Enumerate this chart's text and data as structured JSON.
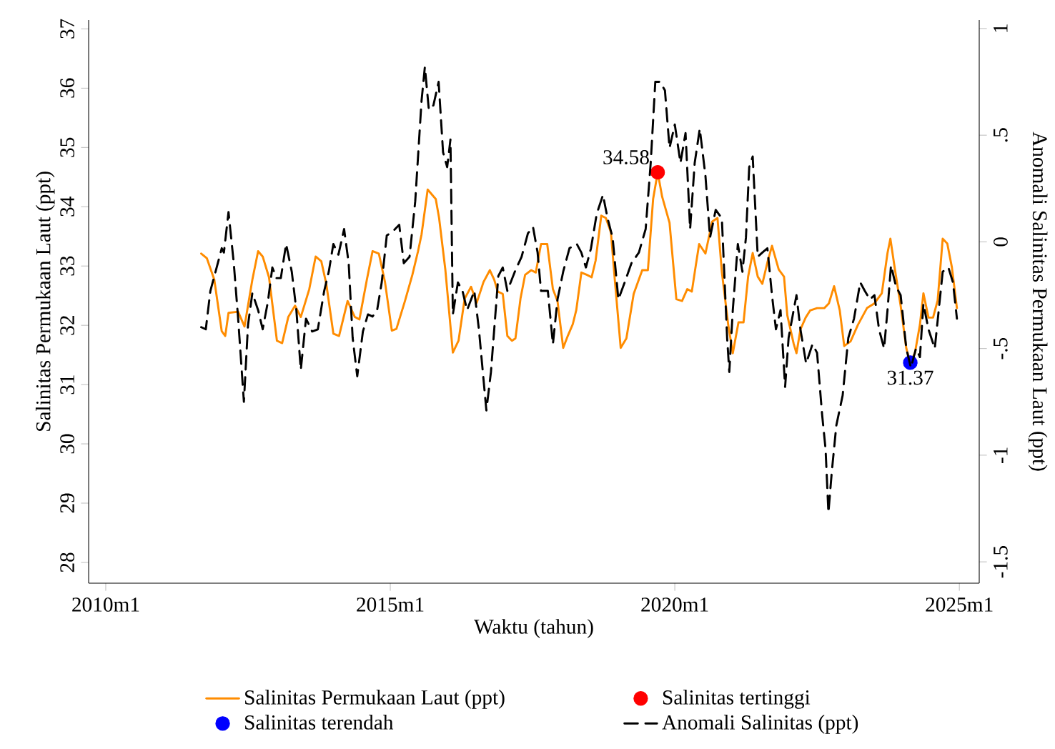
{
  "chart_data": {
    "type": "line",
    "xlabel": "Waktu (tahun)",
    "ylabel": "Salinitas Permukaan Laut (ppt)",
    "y2label": "Anomali Salinitas Permukaan Laut (ppt)",
    "xlim": [
      "2009-09-13",
      "2025-05-07"
    ],
    "ylim": [
      27.65,
      37.15
    ],
    "y2lim": [
      -1.6,
      1.04
    ],
    "xticks": [
      {
        "value": "2010-01",
        "label": "2010m1"
      },
      {
        "value": "2015-01",
        "label": "2015m1"
      },
      {
        "value": "2020-01",
        "label": "2020m1"
      },
      {
        "value": "2025-01",
        "label": "2025m1"
      }
    ],
    "yticks": [
      28,
      29,
      30,
      31,
      32,
      33,
      34,
      35,
      36,
      37
    ],
    "y2ticks": [
      -1.5,
      -1,
      {
        "value": -0.5,
        "label": "-.5"
      },
      0,
      {
        "value": 0.5,
        "label": ".5"
      },
      1
    ],
    "legend": "bottom",
    "series": [
      {
        "name": "Salinitas Permukaan Laut (ppt)",
        "color": "#ff8c00",
        "line_style": "solid",
        "x": [
          "2011-09-05",
          "2011-10-11",
          "2011-11-28",
          "2012-01-15",
          "2012-02-07",
          "2012-02-28",
          "2012-04-29",
          "2012-06-09",
          "2012-07-29",
          "2012-09-05",
          "2012-10-04",
          "2012-11-14",
          "2013-01-04",
          "2013-02-07",
          "2013-03-16",
          "2013-04-29",
          "2013-06-05",
          "2013-07-29",
          "2013-09-09",
          "2013-10-15",
          "2013-11-17",
          "2014-01-01",
          "2014-02-07",
          "2014-04-01",
          "2014-05-17",
          "2014-06-16",
          "2014-08-03",
          "2014-09-09",
          "2014-10-19",
          "2014-11-28",
          "2015-01-11",
          "2015-02-10",
          "2015-04-04",
          "2015-05-21",
          "2015-06-27",
          "2015-07-19",
          "2015-08-28",
          "2015-10-19",
          "2015-11-10",
          "2015-12-20",
          "2016-02-07",
          "2016-03-13",
          "2016-04-22",
          "2016-06-02",
          "2016-07-08",
          "2016-08-21",
          "2016-10-01",
          "2016-10-29",
          "2016-11-21",
          "2016-12-23",
          "2017-01-22",
          "2017-02-21",
          "2017-03-13",
          "2017-04-15",
          "2017-05-14",
          "2017-06-23",
          "2017-07-22",
          "2017-08-25",
          "2017-10-04",
          "2017-11-10",
          "2017-12-09",
          "2018-01-15",
          "2018-02-14",
          "2018-03-16",
          "2018-04-08",
          "2018-05-10",
          "2018-06-16",
          "2018-07-15",
          "2018-08-10",
          "2018-09-16",
          "2018-10-15",
          "2018-11-17",
          "2018-12-09",
          "2019-01-19",
          "2019-02-25",
          "2019-04-11",
          "2019-06-05",
          "2019-07-11",
          "2019-08-14",
          "2019-09-13",
          "2019-10-11",
          "2019-11-28",
          "2020-01-11",
          "2020-02-17",
          "2020-03-20",
          "2020-04-19",
          "2020-05-14",
          "2020-06-05",
          "2020-07-15",
          "2020-08-28",
          "2020-10-01",
          "2020-10-29",
          "2020-12-09",
          "2021-01-08",
          "2021-02-14",
          "2021-03-16",
          "2021-04-15",
          "2021-05-14",
          "2021-06-16",
          "2021-07-15",
          "2021-08-17",
          "2021-09-16",
          "2021-10-29",
          "2021-12-02",
          "2021-12-23",
          "2022-02-03",
          "2022-02-21",
          "2022-03-16",
          "2022-04-19",
          "2022-05-17",
          "2022-07-01",
          "2022-08-17",
          "2022-09-16",
          "2022-10-19",
          "2022-11-25",
          "2022-12-23",
          "2023-02-03",
          "2023-03-20",
          "2023-05-17",
          "2023-07-04",
          "2023-08-21",
          "2023-09-27",
          "2023-10-15",
          "2023-11-14",
          "2023-12-20",
          "2024-01-26",
          "2024-02-21",
          "2024-03-20",
          "2024-04-22",
          "2024-05-14",
          "2024-06-16",
          "2024-07-15",
          "2024-08-14",
          "2024-09-16",
          "2024-10-15",
          "2024-11-14",
          "2024-12-16"
        ],
        "values": [
          33.21,
          33.13,
          32.77,
          31.9,
          31.82,
          32.21,
          32.23,
          31.98,
          32.77,
          33.25,
          33.16,
          32.81,
          31.74,
          31.7,
          32.14,
          32.33,
          32.14,
          32.61,
          33.16,
          33.08,
          32.69,
          31.86,
          31.82,
          32.41,
          32.14,
          32.1,
          32.77,
          33.25,
          33.21,
          32.73,
          31.91,
          31.94,
          32.41,
          32.85,
          33.25,
          33.53,
          34.29,
          34.13,
          33.81,
          32.93,
          31.54,
          31.74,
          32.45,
          32.65,
          32.38,
          32.73,
          32.93,
          32.77,
          32.57,
          32.53,
          31.82,
          31.74,
          31.78,
          32.45,
          32.85,
          32.93,
          32.89,
          33.37,
          33.37,
          32.61,
          32.41,
          31.62,
          31.82,
          32.02,
          32.26,
          32.89,
          32.85,
          32.81,
          33.09,
          33.85,
          33.81,
          33.57,
          32.85,
          31.62,
          31.78,
          32.53,
          32.93,
          32.93,
          34.13,
          34.58,
          34.17,
          33.73,
          32.44,
          32.41,
          32.61,
          32.57,
          33.01,
          33.37,
          33.21,
          33.75,
          33.81,
          32.9,
          32.01,
          31.53,
          32.05,
          32.05,
          32.82,
          33.22,
          32.82,
          32.7,
          33.06,
          33.34,
          32.94,
          32.82,
          32.17,
          31.69,
          31.53,
          31.93,
          32.13,
          32.25,
          32.29,
          32.29,
          32.37,
          32.66,
          32.25,
          31.65,
          31.73,
          32.01,
          32.29,
          32.37,
          32.54,
          33.22,
          33.46,
          32.94,
          32.33,
          31.61,
          31.37,
          31.53,
          32.01,
          32.54,
          32.13,
          32.13,
          32.42,
          33.46,
          33.38,
          32.98,
          32.29
        ]
      },
      {
        "name": "Salinitas tertinggi",
        "type": "scatter",
        "color": "#ff0000",
        "x": [
          "2019-09-13"
        ],
        "values": [
          34.58
        ],
        "value_labels": [
          "34.58"
        ]
      },
      {
        "name": "Salinitas terendah",
        "type": "scatter",
        "color": "#0000ff",
        "x": [
          "2024-02-21"
        ],
        "values": [
          31.37
        ],
        "value_labels": [
          "31.37"
        ]
      },
      {
        "name": "Anomali Salinitas (ppt)",
        "axis": "y2",
        "color": "#000000",
        "line_style": "dashed",
        "x": [
          "2011-09-05",
          "2011-10-04",
          "2011-11-03",
          "2011-12-13",
          "2012-01-15",
          "2012-01-29",
          "2012-02-28",
          "2012-04-01",
          "2012-04-29",
          "2012-06-05",
          "2012-07-01",
          "2012-07-29",
          "2012-09-05",
          "2012-10-04",
          "2012-11-07",
          "2012-12-05",
          "2013-01-01",
          "2013-01-29",
          "2013-03-02",
          "2013-04-08",
          "2013-05-07",
          "2013-06-05",
          "2013-07-08",
          "2013-08-17",
          "2013-09-23",
          "2013-11-03",
          "2013-12-02",
          "2014-01-01",
          "2014-02-03",
          "2014-03-09",
          "2014-04-08",
          "2014-05-03",
          "2014-06-02",
          "2014-07-08",
          "2014-08-10",
          "2014-09-09",
          "2014-10-08",
          "2014-11-07",
          "2014-12-09",
          "2015-01-19",
          "2015-02-28",
          "2015-03-27",
          "2015-05-03",
          "2015-06-09",
          "2015-07-19",
          "2015-08-10",
          "2015-09-05",
          "2015-10-04",
          "2015-11-07",
          "2015-12-05",
          "2016-01-01",
          "2016-01-22",
          "2016-02-07",
          "2016-03-09",
          "2016-04-08",
          "2016-05-07",
          "2016-06-23",
          "2016-07-22",
          "2016-09-09",
          "2016-10-08",
          "2016-11-25",
          "2016-12-23",
          "2017-01-22",
          "2017-03-09",
          "2017-04-22",
          "2017-06-02",
          "2017-07-04",
          "2017-08-03",
          "2017-08-25",
          "2017-10-08",
          "2017-11-10",
          "2017-12-09",
          "2018-01-15",
          "2018-02-25",
          "2018-04-11",
          "2018-05-10",
          "2018-06-09",
          "2018-07-11",
          "2018-08-17",
          "2018-09-27",
          "2018-10-26",
          "2018-11-28",
          "2019-01-04",
          "2019-02-14",
          "2019-03-27",
          "2019-05-14",
          "2019-06-27",
          "2019-07-29",
          "2019-08-28",
          "2019-09-27",
          "2019-10-29",
          "2019-11-28",
          "2020-01-01",
          "2020-02-07",
          "2020-03-09",
          "2020-04-08",
          "2020-05-07",
          "2020-06-09",
          "2020-07-15",
          "2020-08-14",
          "2020-09-20",
          "2020-10-29",
          "2020-12-02",
          "2020-12-16",
          "2021-01-08",
          "2021-02-10",
          "2021-03-09",
          "2021-04-01",
          "2021-04-22",
          "2021-05-14",
          "2021-06-16",
          "2021-07-15",
          "2021-08-17",
          "2021-09-16",
          "2021-10-11",
          "2021-11-10",
          "2021-12-09",
          "2022-01-01",
          "2022-02-03",
          "2022-02-21",
          "2022-03-16",
          "2022-04-22",
          "2022-06-02",
          "2022-07-01",
          "2022-08-03",
          "2022-08-25",
          "2022-09-13",
          "2022-10-04",
          "2022-11-03",
          "2022-12-13",
          "2023-01-19",
          "2023-02-25",
          "2023-04-04",
          "2023-05-03",
          "2023-06-05",
          "2023-07-04",
          "2023-08-03",
          "2023-09-05",
          "2023-09-27",
          "2023-10-19",
          "2023-11-21",
          "2023-12-20",
          "2024-01-26",
          "2024-02-25",
          "2024-03-27",
          "2024-04-22",
          "2024-05-14",
          "2024-06-16",
          "2024-07-26",
          "2024-08-21",
          "2024-09-16",
          "2024-10-22",
          "2024-11-21",
          "2024-12-16"
        ],
        "values": [
          -0.4,
          -0.41,
          -0.23,
          -0.12,
          -0.03,
          -0.05,
          0.14,
          -0.1,
          -0.36,
          -0.75,
          -0.39,
          -0.24,
          -0.32,
          -0.41,
          -0.28,
          -0.12,
          -0.17,
          -0.17,
          -0.01,
          -0.14,
          -0.32,
          -0.6,
          -0.36,
          -0.42,
          -0.41,
          -0.23,
          -0.14,
          -0.01,
          -0.06,
          0.06,
          -0.1,
          -0.45,
          -0.63,
          -0.42,
          -0.34,
          -0.35,
          -0.32,
          -0.19,
          0.03,
          0.05,
          0.08,
          -0.1,
          -0.07,
          0.19,
          0.66,
          0.82,
          0.62,
          0.64,
          0.75,
          0.42,
          0.35,
          0.48,
          -0.34,
          -0.19,
          -0.23,
          -0.32,
          -0.23,
          -0.41,
          -0.79,
          -0.61,
          -0.16,
          -0.12,
          -0.23,
          -0.14,
          -0.07,
          0.04,
          0.07,
          -0.05,
          -0.23,
          -0.23,
          -0.48,
          -0.27,
          -0.14,
          -0.03,
          -0.01,
          -0.05,
          -0.12,
          -0.03,
          0.13,
          0.22,
          0.11,
          0.02,
          -0.27,
          -0.19,
          -0.1,
          -0.05,
          0.06,
          0.37,
          0.75,
          0.75,
          0.71,
          0.44,
          0.55,
          0.37,
          0.51,
          0.06,
          0.37,
          0.53,
          0.31,
          0.02,
          0.15,
          0.11,
          -0.45,
          -0.61,
          -0.32,
          -0.01,
          -0.14,
          0.02,
          0.35,
          0.4,
          -0.07,
          -0.05,
          -0.03,
          -0.25,
          -0.41,
          -0.32,
          -0.68,
          -0.45,
          -0.32,
          -0.25,
          -0.41,
          -0.57,
          -0.48,
          -0.52,
          -0.81,
          -0.97,
          -1.27,
          -1.08,
          -0.86,
          -0.72,
          -0.45,
          -0.36,
          -0.19,
          -0.23,
          -0.27,
          -0.25,
          -0.41,
          -0.5,
          -0.32,
          -0.11,
          -0.21,
          -0.25,
          -0.5,
          -0.59,
          -0.5,
          -0.54,
          -0.29,
          -0.41,
          -0.5,
          -0.32,
          -0.14,
          -0.12,
          -0.19,
          -0.36
        ]
      }
    ]
  }
}
